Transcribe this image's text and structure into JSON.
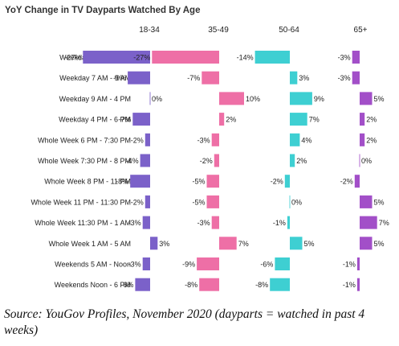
{
  "chart_data": {
    "type": "bar",
    "title": "YoY Change in TV Dayparts Watched By Age",
    "categories": [
      "Weekday 5 AM - 7 AM",
      "Weekday 7 AM - 9 AM",
      "Weekday 9 AM - 4 PM",
      "Weekday 4 PM - 6 PM",
      "Whole Week 6 PM - 7:30 PM",
      "Whole Week 7:30 PM - 8 PM",
      "Whole Week 8 PM - 11 PM",
      "Whole Week 11 PM - 11:30 PM",
      "Whole Week 11:30 PM - 1 AM",
      "Whole Week 1 AM - 5 AM",
      "Weekends 5 AM - Noon",
      "Weekends Noon - 6 PM"
    ],
    "series": [
      {
        "name": "18-34",
        "color": "#7B61C9",
        "values": [
          -27,
          -9,
          0,
          -7,
          -2,
          -4,
          -8,
          -2,
          -3,
          3,
          -3,
          -6
        ]
      },
      {
        "name": "35-49",
        "color": "#EE6FA6",
        "values": [
          -27,
          -7,
          10,
          2,
          -3,
          -2,
          -5,
          -5,
          -3,
          7,
          -9,
          -8
        ]
      },
      {
        "name": "50-64",
        "color": "#3ECFD2",
        "values": [
          -14,
          3,
          9,
          7,
          4,
          2,
          -2,
          0,
          -1,
          5,
          -6,
          -8
        ]
      },
      {
        "name": "65+",
        "color": "#A24FC8",
        "values": [
          -3,
          -3,
          5,
          2,
          2,
          0,
          -2,
          5,
          7,
          5,
          -1,
          -1
        ]
      }
    ],
    "value_suffix": "%",
    "ylim": [
      -30,
      12
    ],
    "grid": false,
    "legend": "none"
  },
  "caption": "Source: YouGov Profiles, November 2020 (dayparts = watched in past 4 weeks)"
}
